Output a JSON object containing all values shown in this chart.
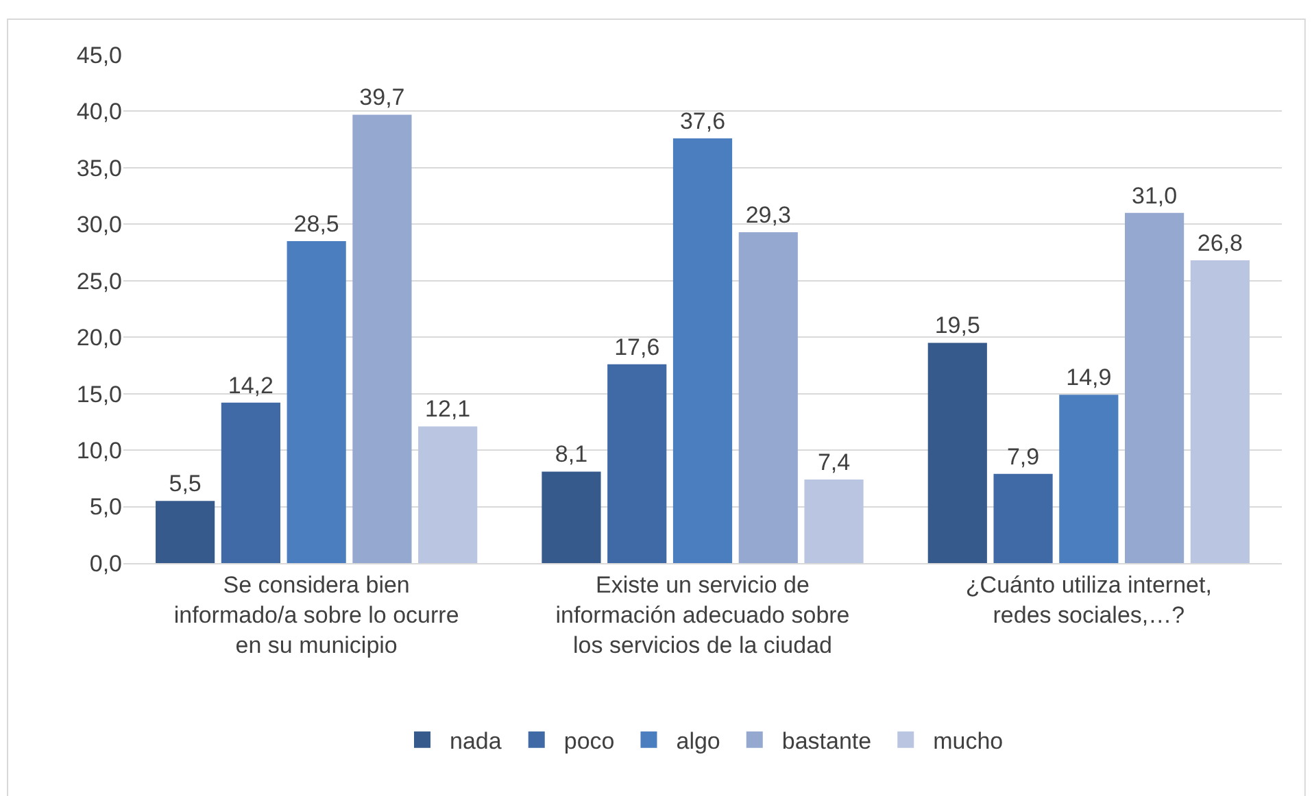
{
  "chart_data": {
    "type": "bar",
    "categories": [
      "Se considera bien\ninformado/a sobre lo ocurre\nen su municipio",
      "Existe un servicio de\ninformación adecuado sobre\nlos servicios de la ciudad",
      "¿Cuánto utiliza internet,\nredes sociales,…?"
    ],
    "series": [
      {
        "name": "nada",
        "color": "#375a8c",
        "values": [
          5.5,
          8.1,
          19.5
        ],
        "value_labels": [
          "5,5",
          "8,1",
          "19,5"
        ]
      },
      {
        "name": "poco",
        "color": "#3f6aa6",
        "values": [
          14.2,
          17.6,
          7.9
        ],
        "value_labels": [
          "14,2",
          "17,6",
          "7,9"
        ]
      },
      {
        "name": "algo",
        "color": "#4a7ebf",
        "values": [
          28.5,
          37.6,
          14.9
        ],
        "value_labels": [
          "28,5",
          "37,6",
          "14,9"
        ]
      },
      {
        "name": "bastante",
        "color": "#95a8d0",
        "values": [
          39.7,
          29.3,
          31.0
        ],
        "value_labels": [
          "39,7",
          "29,3",
          "31,0"
        ]
      },
      {
        "name": "mucho",
        "color": "#bac6e1",
        "values": [
          12.1,
          7.4,
          26.8
        ],
        "value_labels": [
          "12,1",
          "7,4",
          "26,8"
        ]
      }
    ],
    "ylim": [
      0,
      45
    ],
    "yticks": [
      {
        "value": 0,
        "label": "0,0"
      },
      {
        "value": 5,
        "label": "5,0"
      },
      {
        "value": 10,
        "label": "10,0"
      },
      {
        "value": 15,
        "label": "15,0"
      },
      {
        "value": 20,
        "label": "20,0"
      },
      {
        "value": 25,
        "label": "25,0"
      },
      {
        "value": 30,
        "label": "30,0"
      },
      {
        "value": 35,
        "label": "35,0"
      },
      {
        "value": 40,
        "label": "40,0"
      },
      {
        "value": 45,
        "label": "45,0"
      }
    ],
    "grid": "y",
    "legend": "bottom"
  }
}
